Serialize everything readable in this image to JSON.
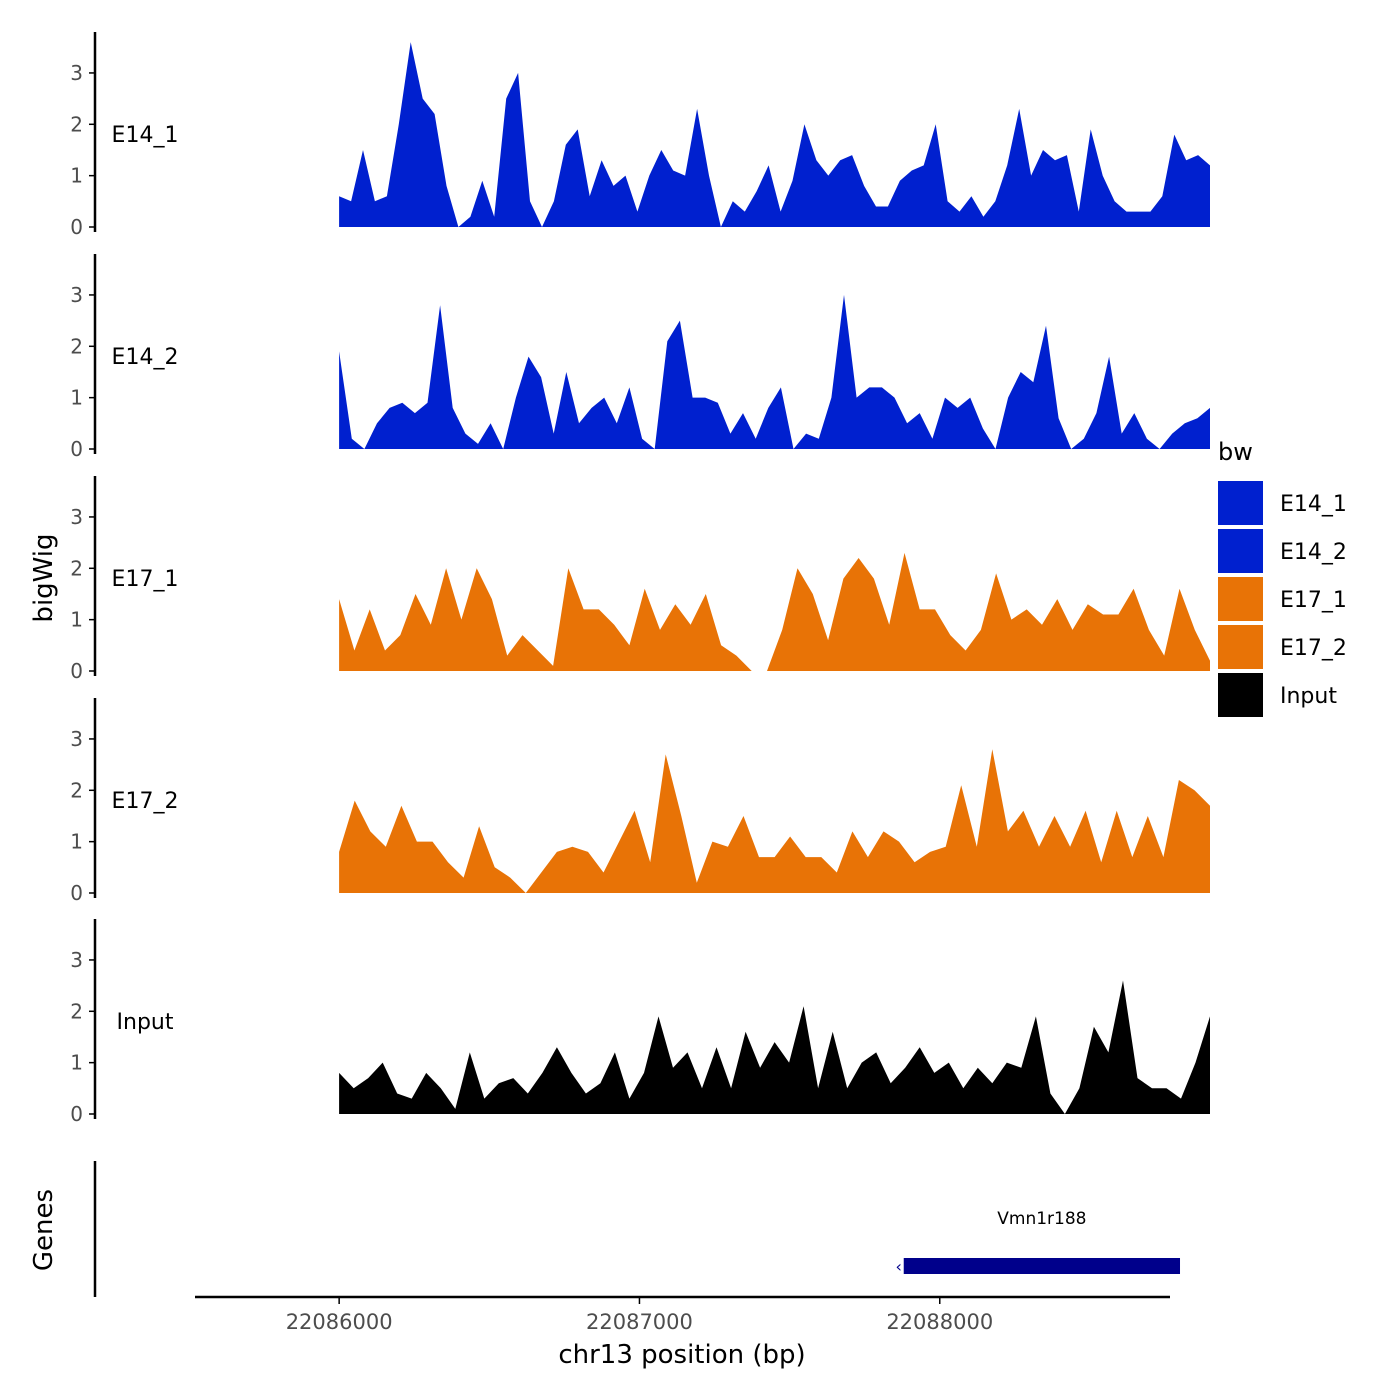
{
  "chart_data": {
    "type": "area",
    "title": "",
    "ylabel": "bigWig",
    "xlabel": "chr13 position (bp)",
    "gene_track_label": "Genes",
    "x_ticks": [
      {
        "value": 22086000,
        "label": "22086000"
      },
      {
        "value": 22087000,
        "label": "22087000"
      },
      {
        "value": 22088000,
        "label": "22088000"
      }
    ],
    "xlim": [
      22085520,
      22088760
    ],
    "data_range": [
      22086000,
      22088900
    ],
    "ylim": [
      0,
      3.7
    ],
    "y_ticks": [
      {
        "value": 0,
        "label": "0"
      },
      {
        "value": 1,
        "label": "1"
      },
      {
        "value": 2,
        "label": "2"
      },
      {
        "value": 3,
        "label": "3"
      }
    ],
    "legend": {
      "title": "bw",
      "position": "right",
      "items": [
        {
          "name": "E14_1",
          "color": "#0020CF"
        },
        {
          "name": "E14_2",
          "color": "#0020CF"
        },
        {
          "name": "E17_1",
          "color": "#E87306"
        },
        {
          "name": "E17_2",
          "color": "#E87306"
        },
        {
          "name": "Input",
          "color": "#000000"
        }
      ]
    },
    "series": [
      {
        "name": "E14_1",
        "color": "#0020CF",
        "values": [
          0.6,
          0.5,
          1.5,
          0.5,
          0.6,
          2.0,
          3.6,
          2.5,
          2.2,
          0.8,
          0.0,
          0.2,
          0.9,
          0.2,
          2.5,
          3.0,
          0.5,
          0.0,
          0.5,
          1.6,
          1.9,
          0.6,
          1.3,
          0.8,
          1.0,
          0.3,
          1.0,
          1.5,
          1.1,
          1.0,
          2.3,
          1.0,
          0.0,
          0.5,
          0.3,
          0.7,
          1.2,
          0.3,
          0.9,
          2.0,
          1.3,
          1.0,
          1.3,
          1.4,
          0.8,
          0.4,
          0.4,
          0.9,
          1.1,
          1.2,
          2.0,
          0.5,
          0.3,
          0.6,
          0.2,
          0.5,
          1.2,
          2.3,
          1.0,
          1.5,
          1.3,
          1.4,
          0.3,
          1.9,
          1.0,
          0.5,
          0.3,
          0.3,
          0.3,
          0.6,
          1.8,
          1.3,
          1.4,
          1.2
        ]
      },
      {
        "name": "E14_2",
        "color": "#0020CF",
        "values": [
          1.9,
          0.2,
          0.0,
          0.5,
          0.8,
          0.9,
          0.7,
          0.9,
          2.8,
          0.8,
          0.3,
          0.1,
          0.5,
          0.0,
          1.0,
          1.8,
          1.4,
          0.3,
          1.5,
          0.5,
          0.8,
          1.0,
          0.5,
          1.2,
          0.2,
          0.0,
          2.1,
          2.5,
          1.0,
          1.0,
          0.9,
          0.3,
          0.7,
          0.2,
          0.8,
          1.2,
          0.0,
          0.3,
          0.2,
          1.0,
          3.0,
          1.0,
          1.2,
          1.2,
          1.0,
          0.5,
          0.7,
          0.2,
          1.0,
          0.8,
          1.0,
          0.4,
          0.0,
          1.0,
          1.5,
          1.3,
          2.4,
          0.6,
          0.0,
          0.2,
          0.7,
          1.8,
          0.3,
          0.7,
          0.2,
          0.0,
          0.3,
          0.5,
          0.6,
          0.8
        ]
      },
      {
        "name": "E17_1",
        "color": "#E87306",
        "values": [
          1.4,
          0.4,
          1.2,
          0.4,
          0.7,
          1.5,
          0.9,
          2.0,
          1.0,
          2.0,
          1.4,
          0.3,
          0.7,
          0.4,
          0.1,
          2.0,
          1.2,
          1.2,
          0.9,
          0.5,
          1.6,
          0.8,
          1.3,
          0.9,
          1.5,
          0.5,
          0.3,
          0.0,
          0.0,
          0.8,
          2.0,
          1.5,
          0.6,
          1.8,
          2.2,
          1.8,
          0.9,
          2.3,
          1.2,
          1.2,
          0.7,
          0.4,
          0.8,
          1.9,
          1.0,
          1.2,
          0.9,
          1.4,
          0.8,
          1.3,
          1.1,
          1.1,
          1.6,
          0.8,
          0.3,
          1.6,
          0.8,
          0.2
        ]
      },
      {
        "name": "E17_2",
        "color": "#E87306",
        "values": [
          0.8,
          1.8,
          1.2,
          0.9,
          1.7,
          1.0,
          1.0,
          0.6,
          0.3,
          1.3,
          0.5,
          0.3,
          0.0,
          0.4,
          0.8,
          0.9,
          0.8,
          0.4,
          1.0,
          1.6,
          0.6,
          2.7,
          1.5,
          0.2,
          1.0,
          0.9,
          1.5,
          0.7,
          0.7,
          1.1,
          0.7,
          0.7,
          0.4,
          1.2,
          0.7,
          1.2,
          1.0,
          0.6,
          0.8,
          0.9,
          2.1,
          0.9,
          2.8,
          1.2,
          1.6,
          0.9,
          1.5,
          0.9,
          1.6,
          0.6,
          1.6,
          0.7,
          1.5,
          0.7,
          2.2,
          2.0,
          1.7
        ]
      },
      {
        "name": "Input",
        "color": "#000000",
        "values": [
          0.8,
          0.5,
          0.7,
          1.0,
          0.4,
          0.3,
          0.8,
          0.5,
          0.1,
          1.2,
          0.3,
          0.6,
          0.7,
          0.4,
          0.8,
          1.3,
          0.8,
          0.4,
          0.6,
          1.2,
          0.3,
          0.8,
          1.9,
          0.9,
          1.2,
          0.5,
          1.3,
          0.5,
          1.6,
          0.9,
          1.4,
          1.0,
          2.1,
          0.5,
          1.6,
          0.5,
          1.0,
          1.2,
          0.6,
          0.9,
          1.3,
          0.8,
          1.0,
          0.5,
          0.9,
          0.6,
          1.0,
          0.9,
          1.9,
          0.4,
          0.0,
          0.5,
          1.7,
          1.2,
          2.6,
          0.7,
          0.5,
          0.5,
          0.3,
          1.0,
          1.9
        ]
      }
    ],
    "genes": [
      {
        "name": "Vmn1r188",
        "start": 22087880,
        "end": 22088800,
        "strand": "-",
        "color": "#00008B"
      }
    ]
  }
}
